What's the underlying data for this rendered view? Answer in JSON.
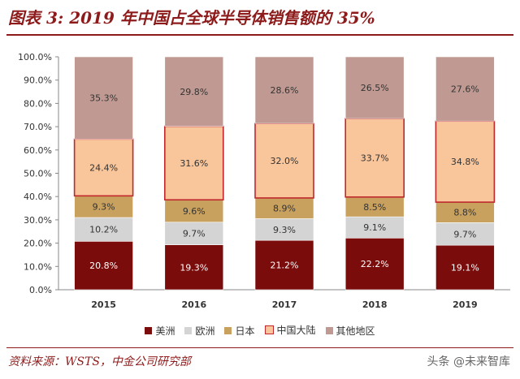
{
  "header": {
    "title": "图表 3: 2019 年中国占全球半导体销售额的 35%"
  },
  "footer": {
    "source": "资料来源：WSTS，中金公司研究部",
    "watermark": "头条 @未来智库"
  },
  "colors": {
    "americas": "#7a0c0c",
    "europe": "#d4d4d4",
    "japan": "#c9a15f",
    "china": "#f9c59b",
    "china_border": "#c0282e",
    "other": "#c09a92"
  },
  "chart_data": {
    "type": "bar",
    "stacked": true,
    "categories": [
      "2015",
      "2016",
      "2017",
      "2018",
      "2019"
    ],
    "series": [
      {
        "name": "美洲",
        "values": [
          20.8,
          19.3,
          21.2,
          22.2,
          19.1
        ],
        "labels": [
          "20.8%",
          "19.3%",
          "21.2%",
          "22.2%",
          "19.1%"
        ]
      },
      {
        "name": "欧洲",
        "values": [
          10.2,
          9.7,
          9.3,
          9.1,
          9.7
        ],
        "labels": [
          "10.2%",
          "9.7%",
          "9.3%",
          "9.1%",
          "9.7%"
        ]
      },
      {
        "name": "日本",
        "values": [
          9.3,
          9.6,
          8.9,
          8.5,
          8.8
        ],
        "labels": [
          "9.3%",
          "9.6%",
          "8.9%",
          "8.5%",
          "8.8%"
        ]
      },
      {
        "name": "中国大陆",
        "values": [
          24.4,
          31.6,
          32.0,
          33.7,
          34.8
        ],
        "labels": [
          "24.4%",
          "31.6%",
          "32.0%",
          "33.7%",
          "34.8%"
        ]
      },
      {
        "name": "其他地区",
        "values": [
          35.3,
          29.8,
          28.6,
          26.5,
          27.6
        ],
        "labels": [
          "35.3%",
          "29.8%",
          "28.6%",
          "26.5%",
          "27.6%"
        ]
      }
    ],
    "yticks": [
      "0.0%",
      "10.0%",
      "20.0%",
      "30.0%",
      "40.0%",
      "50.0%",
      "60.0%",
      "70.0%",
      "80.0%",
      "90.0%",
      "100.0%"
    ],
    "ylim": [
      0,
      100
    ],
    "grid": false,
    "legend_position": "bottom"
  }
}
